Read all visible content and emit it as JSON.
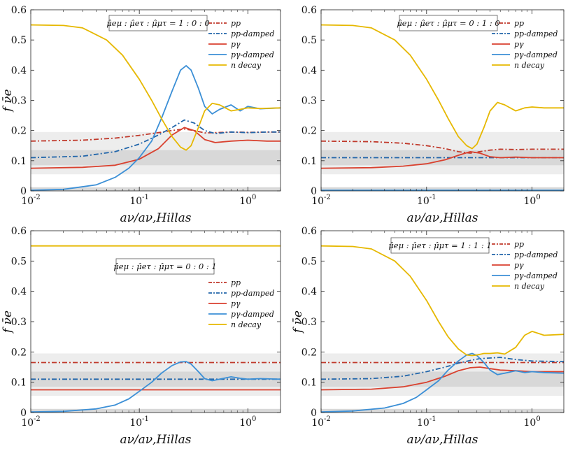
{
  "chart_data": [
    {
      "type": "line",
      "panel": "top-left",
      "ratio_label": "μ̂eμ : μ̂eτ : μ̂μτ = 1 : 0 : 0",
      "xlabel": "aν/aν,Hillas",
      "ylabel": "f ν̄e",
      "xscale": "log",
      "xlim": [
        0.01,
        2
      ],
      "ylim": [
        0,
        0.6
      ],
      "yticks": [
        "0",
        "0.1",
        "0.2",
        "0.3",
        "0.4",
        "0.5",
        "0.6"
      ],
      "xticks": [
        "10^-2",
        "10^-1",
        "10^0"
      ],
      "bands": [
        {
          "range": [
            0.055,
            0.195
          ],
          "shade": "light"
        },
        {
          "range": [
            0.085,
            0.135
          ],
          "shade": "dark"
        },
        {
          "range": [
            0,
            0.012
          ],
          "shade": "dark"
        }
      ],
      "legend": {
        "position": "top-right",
        "entries": [
          "pp",
          "pp-damped",
          "pγ",
          "pγ-damped",
          "n decay"
        ]
      },
      "series": [
        {
          "name": "pp",
          "color": "#c0392b",
          "style": "dashdot",
          "x": [
            0.01,
            0.03,
            0.06,
            0.1,
            0.15,
            0.2,
            0.26,
            0.32,
            0.4,
            0.5,
            0.7,
            1.0,
            1.5,
            2.0
          ],
          "y": [
            0.165,
            0.168,
            0.175,
            0.184,
            0.193,
            0.2,
            0.205,
            0.2,
            0.192,
            0.193,
            0.195,
            0.194,
            0.195,
            0.195
          ]
        },
        {
          "name": "pp-damped",
          "color": "#2266aa",
          "style": "dashdot",
          "x": [
            0.01,
            0.03,
            0.06,
            0.1,
            0.15,
            0.2,
            0.26,
            0.32,
            0.4,
            0.5,
            0.7,
            1.0,
            1.5,
            2.0
          ],
          "y": [
            0.11,
            0.115,
            0.13,
            0.155,
            0.185,
            0.21,
            0.235,
            0.225,
            0.2,
            0.19,
            0.195,
            0.193,
            0.195,
            0.195
          ]
        },
        {
          "name": "pγ",
          "color": "#d9412f",
          "style": "solid",
          "x": [
            0.01,
            0.03,
            0.06,
            0.1,
            0.15,
            0.2,
            0.26,
            0.32,
            0.4,
            0.5,
            0.7,
            1.0,
            1.5,
            2.0
          ],
          "y": [
            0.075,
            0.078,
            0.085,
            0.105,
            0.14,
            0.185,
            0.21,
            0.2,
            0.17,
            0.16,
            0.165,
            0.168,
            0.165,
            0.165
          ]
        },
        {
          "name": "pγ-damped",
          "color": "#3b8fd6",
          "style": "solid",
          "x": [
            0.01,
            0.02,
            0.04,
            0.06,
            0.08,
            0.1,
            0.13,
            0.16,
            0.2,
            0.24,
            0.27,
            0.3,
            0.35,
            0.4,
            0.47,
            0.55,
            0.7,
            0.85,
            1.0,
            1.3,
            2.0
          ],
          "y": [
            0.002,
            0.005,
            0.02,
            0.045,
            0.075,
            0.11,
            0.165,
            0.24,
            0.33,
            0.4,
            0.415,
            0.4,
            0.34,
            0.28,
            0.255,
            0.27,
            0.285,
            0.265,
            0.28,
            0.272,
            0.275
          ]
        },
        {
          "name": "n decay",
          "color": "#e6b800",
          "style": "solid",
          "x": [
            0.01,
            0.02,
            0.03,
            0.05,
            0.07,
            0.1,
            0.13,
            0.16,
            0.2,
            0.24,
            0.27,
            0.3,
            0.35,
            0.4,
            0.47,
            0.55,
            0.7,
            0.85,
            1.0,
            1.3,
            2.0
          ],
          "y": [
            0.55,
            0.548,
            0.54,
            0.5,
            0.45,
            0.37,
            0.3,
            0.24,
            0.18,
            0.145,
            0.135,
            0.15,
            0.21,
            0.265,
            0.29,
            0.285,
            0.265,
            0.27,
            0.275,
            0.273,
            0.275
          ]
        }
      ]
    },
    {
      "type": "line",
      "panel": "top-right",
      "ratio_label": "μ̂eμ : μ̂eτ : μ̂μτ = 0 : 1 : 0",
      "xlabel": "aν/aν,Hillas",
      "ylabel": "",
      "xscale": "log",
      "xlim": [
        0.01,
        2
      ],
      "ylim": [
        0,
        0.6
      ],
      "yticks": [
        "0",
        "0.1",
        "0.2",
        "0.3",
        "0.4",
        "0.5",
        "0.6"
      ],
      "xticks": [
        "10^-2",
        "10^-1",
        "10^0"
      ],
      "bands": [
        {
          "range": [
            0.055,
            0.195
          ],
          "shade": "light"
        },
        {
          "range": [
            0.085,
            0.135
          ],
          "shade": "dark"
        },
        {
          "range": [
            0,
            0.012
          ],
          "shade": "dark"
        }
      ],
      "legend": {
        "position": "top-right",
        "entries": [
          "pp",
          "pp-damped",
          "pγ",
          "pγ-damped",
          "n decay"
        ]
      },
      "series": [
        {
          "name": "pp",
          "color": "#c0392b",
          "style": "dashdot",
          "x": [
            0.01,
            0.03,
            0.06,
            0.1,
            0.15,
            0.2,
            0.26,
            0.32,
            0.4,
            0.5,
            0.7,
            1.0,
            2.0
          ],
          "y": [
            0.165,
            0.163,
            0.158,
            0.15,
            0.14,
            0.13,
            0.125,
            0.13,
            0.135,
            0.138,
            0.137,
            0.138,
            0.138
          ]
        },
        {
          "name": "pp-damped",
          "color": "#2266aa",
          "style": "dashdot",
          "x": [
            0.01,
            0.1,
            0.5,
            1.0,
            2.0
          ],
          "y": [
            0.11,
            0.11,
            0.11,
            0.11,
            0.11
          ]
        },
        {
          "name": "pγ",
          "color": "#d9412f",
          "style": "solid",
          "x": [
            0.01,
            0.03,
            0.06,
            0.1,
            0.15,
            0.2,
            0.26,
            0.32,
            0.4,
            0.5,
            0.7,
            1.0,
            2.0
          ],
          "y": [
            0.075,
            0.077,
            0.082,
            0.09,
            0.103,
            0.118,
            0.13,
            0.125,
            0.113,
            0.11,
            0.112,
            0.11,
            0.11
          ]
        },
        {
          "name": "pγ-damped",
          "color": "#3b8fd6",
          "style": "solid",
          "x": [
            0.01,
            0.1,
            0.5,
            1.0,
            2.0
          ],
          "y": [
            0.002,
            0.002,
            0.002,
            0.002,
            0.002
          ]
        },
        {
          "name": "n decay",
          "color": "#e6b800",
          "style": "solid",
          "x": [
            0.01,
            0.02,
            0.03,
            0.05,
            0.07,
            0.1,
            0.13,
            0.16,
            0.2,
            0.24,
            0.27,
            0.3,
            0.35,
            0.4,
            0.47,
            0.55,
            0.7,
            0.85,
            1.0,
            1.3,
            2.0
          ],
          "y": [
            0.55,
            0.548,
            0.54,
            0.5,
            0.45,
            0.37,
            0.3,
            0.24,
            0.18,
            0.15,
            0.14,
            0.155,
            0.21,
            0.265,
            0.293,
            0.285,
            0.265,
            0.275,
            0.278,
            0.275,
            0.275
          ]
        }
      ]
    },
    {
      "type": "line",
      "panel": "bottom-left",
      "ratio_label": "μ̂eμ : μ̂eτ : μ̂μτ = 0 : 0 : 1",
      "xlabel": "aν/aν,Hillas",
      "ylabel": "f ν̄e",
      "xscale": "log",
      "xlim": [
        0.01,
        2
      ],
      "ylim": [
        0,
        0.6
      ],
      "yticks": [
        "0",
        "0.1",
        "0.2",
        "0.3",
        "0.4",
        "0.5",
        "0.6"
      ],
      "xticks": [
        "10^-2",
        "10^-1",
        "10^0"
      ],
      "bands": [
        {
          "range": [
            0.055,
            0.195
          ],
          "shade": "light"
        },
        {
          "range": [
            0.085,
            0.135
          ],
          "shade": "dark"
        },
        {
          "range": [
            0,
            0.012
          ],
          "shade": "dark"
        }
      ],
      "legend": {
        "position": "center-right",
        "entries": [
          "pp",
          "pp-damped",
          "pγ",
          "pγ-damped",
          "n decay"
        ]
      },
      "series": [
        {
          "name": "pp",
          "color": "#c0392b",
          "style": "dashdot",
          "x": [
            0.01,
            0.1,
            0.5,
            1.0,
            2.0
          ],
          "y": [
            0.165,
            0.165,
            0.165,
            0.165,
            0.165
          ]
        },
        {
          "name": "pp-damped",
          "color": "#2266aa",
          "style": "dashdot",
          "x": [
            0.01,
            0.1,
            0.5,
            1.0,
            2.0
          ],
          "y": [
            0.11,
            0.11,
            0.11,
            0.11,
            0.11
          ]
        },
        {
          "name": "pγ",
          "color": "#d9412f",
          "style": "solid",
          "x": [
            0.01,
            0.1,
            0.5,
            1.0,
            2.0
          ],
          "y": [
            0.075,
            0.075,
            0.075,
            0.075,
            0.075
          ]
        },
        {
          "name": "pγ-damped",
          "color": "#3b8fd6",
          "style": "solid",
          "x": [
            0.01,
            0.02,
            0.04,
            0.06,
            0.08,
            0.1,
            0.13,
            0.16,
            0.2,
            0.24,
            0.27,
            0.3,
            0.35,
            0.4,
            0.47,
            0.55,
            0.7,
            0.85,
            1.0,
            1.3,
            2.0
          ],
          "y": [
            0.002,
            0.004,
            0.012,
            0.025,
            0.045,
            0.07,
            0.1,
            0.13,
            0.155,
            0.167,
            0.168,
            0.16,
            0.135,
            0.112,
            0.105,
            0.11,
            0.118,
            0.113,
            0.11,
            0.112,
            0.11
          ]
        },
        {
          "name": "n decay",
          "color": "#e6b800",
          "style": "solid",
          "x": [
            0.01,
            0.1,
            0.5,
            1.0,
            2.0
          ],
          "y": [
            0.55,
            0.55,
            0.55,
            0.55,
            0.55
          ]
        }
      ]
    },
    {
      "type": "line",
      "panel": "bottom-right",
      "ratio_label": "μ̂eμ : μ̂eτ : μ̂μτ = 1 : 1 : 1",
      "xlabel": "aν/aν,Hillas",
      "ylabel": "f ν̄e",
      "xscale": "log",
      "xlim": [
        0.01,
        2
      ],
      "ylim": [
        0,
        0.6
      ],
      "yticks": [
        "0",
        "0.1",
        "0.2",
        "0.3",
        "0.4",
        "0.5",
        "0.6"
      ],
      "xticks": [
        "10^-2",
        "10^-1",
        "10^0"
      ],
      "bands": [
        {
          "range": [
            0.055,
            0.195
          ],
          "shade": "light"
        },
        {
          "range": [
            0.085,
            0.135
          ],
          "shade": "dark"
        },
        {
          "range": [
            0,
            0.012
          ],
          "shade": "dark"
        }
      ],
      "legend": {
        "position": "top-right",
        "entries": [
          "pp",
          "pp-damped",
          "pγ",
          "pγ-damped",
          "n decay"
        ]
      },
      "series": [
        {
          "name": "pp",
          "color": "#c0392b",
          "style": "dashdot",
          "x": [
            0.01,
            0.1,
            0.5,
            1.0,
            2.0
          ],
          "y": [
            0.165,
            0.165,
            0.165,
            0.165,
            0.165
          ]
        },
        {
          "name": "pp-damped",
          "color": "#2266aa",
          "style": "dashdot",
          "x": [
            0.01,
            0.03,
            0.06,
            0.1,
            0.15,
            0.2,
            0.26,
            0.32,
            0.4,
            0.5,
            0.7,
            1.0,
            2.0
          ],
          "y": [
            0.11,
            0.112,
            0.12,
            0.135,
            0.15,
            0.163,
            0.172,
            0.178,
            0.18,
            0.182,
            0.175,
            0.17,
            0.168
          ]
        },
        {
          "name": "pγ",
          "color": "#d9412f",
          "style": "solid",
          "x": [
            0.01,
            0.03,
            0.06,
            0.1,
            0.15,
            0.2,
            0.26,
            0.32,
            0.4,
            0.5,
            0.7,
            1.0,
            2.0
          ],
          "y": [
            0.075,
            0.077,
            0.085,
            0.1,
            0.12,
            0.138,
            0.148,
            0.15,
            0.145,
            0.14,
            0.138,
            0.135,
            0.135
          ]
        },
        {
          "name": "pγ-damped",
          "color": "#3b8fd6",
          "style": "solid",
          "x": [
            0.01,
            0.02,
            0.04,
            0.06,
            0.08,
            0.1,
            0.13,
            0.16,
            0.2,
            0.24,
            0.27,
            0.3,
            0.35,
            0.4,
            0.47,
            0.55,
            0.7,
            0.85,
            1.0,
            1.3,
            2.0
          ],
          "y": [
            0.002,
            0.005,
            0.015,
            0.03,
            0.05,
            0.075,
            0.105,
            0.14,
            0.17,
            0.19,
            0.195,
            0.188,
            0.165,
            0.14,
            0.125,
            0.13,
            0.138,
            0.132,
            0.135,
            0.132,
            0.13
          ]
        },
        {
          "name": "n decay",
          "color": "#e6b800",
          "style": "solid",
          "x": [
            0.01,
            0.02,
            0.03,
            0.05,
            0.07,
            0.1,
            0.13,
            0.16,
            0.2,
            0.24,
            0.27,
            0.3,
            0.35,
            0.4,
            0.47,
            0.55,
            0.7,
            0.85,
            1.0,
            1.3,
            2.0
          ],
          "y": [
            0.55,
            0.548,
            0.54,
            0.5,
            0.45,
            0.37,
            0.3,
            0.25,
            0.21,
            0.19,
            0.188,
            0.19,
            0.195,
            0.195,
            0.197,
            0.193,
            0.215,
            0.255,
            0.268,
            0.255,
            0.258
          ]
        }
      ]
    }
  ]
}
